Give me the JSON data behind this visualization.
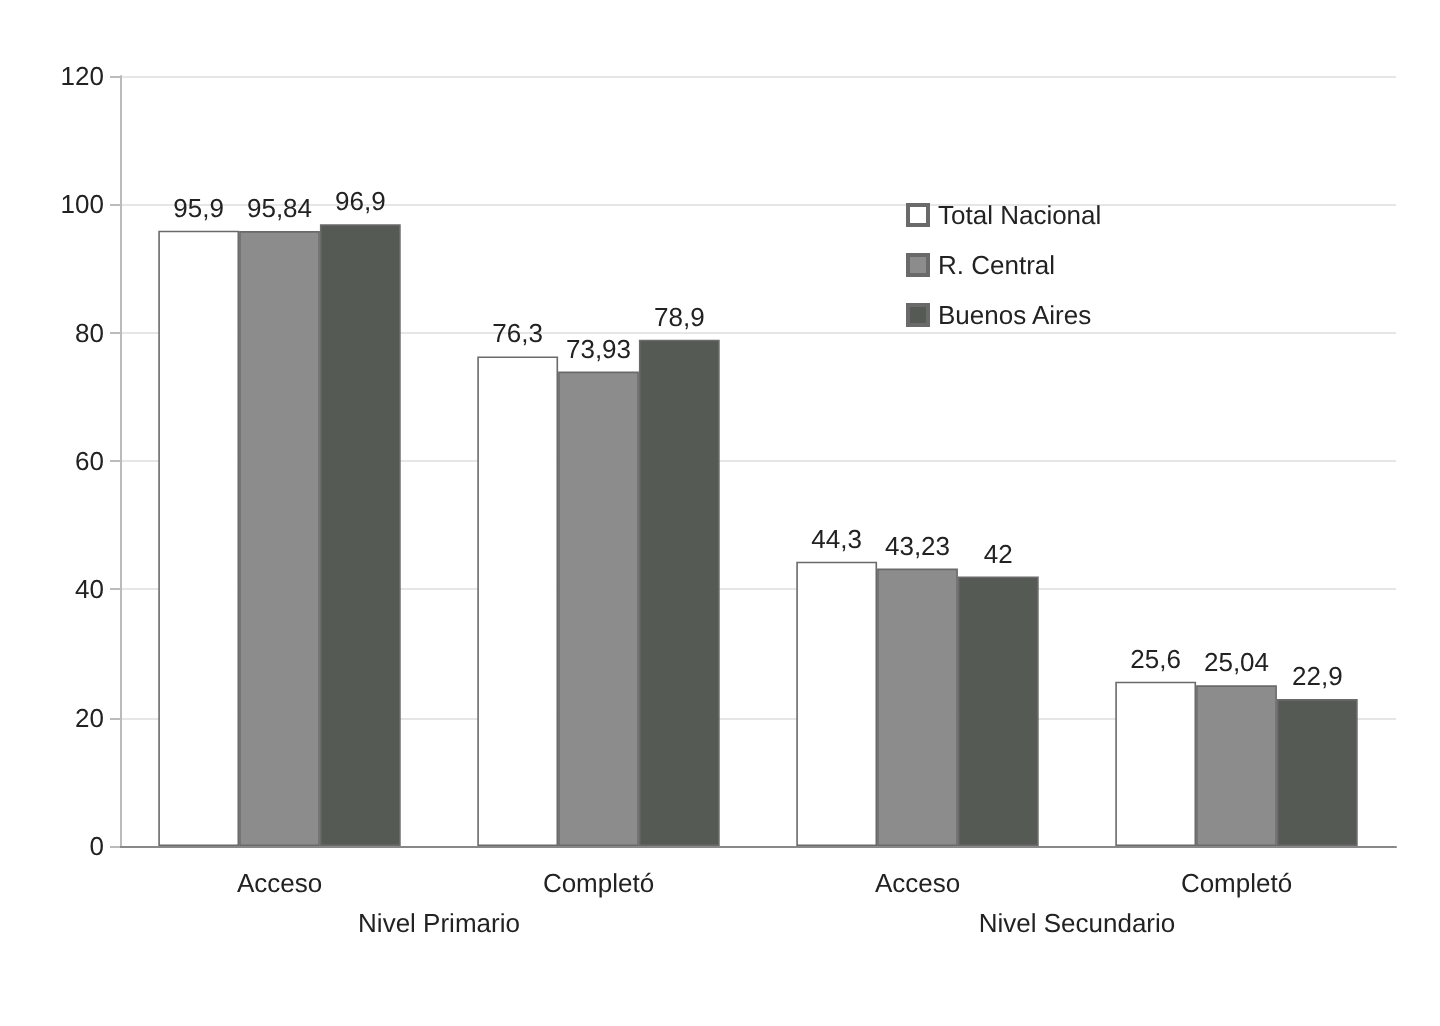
{
  "chart_data": {
    "type": "bar",
    "categories": [
      "Acceso",
      "Completó",
      "Acceso",
      "Completó"
    ],
    "series": [
      {
        "name": "Total Nacional",
        "color": "#ffffff",
        "values": [
          95.9,
          76.3,
          44.3,
          25.6
        ],
        "value_labels": [
          "95,9",
          "76,3",
          "44,3",
          "25,6"
        ]
      },
      {
        "name": "R. Central",
        "color": "#8c8c8c",
        "values": [
          95.84,
          73.93,
          43.23,
          25.04
        ],
        "value_labels": [
          "95,84",
          "73,93",
          "43,23",
          "25,04"
        ]
      },
      {
        "name": "Buenos Aires",
        "color": "#555a55",
        "values": [
          96.9,
          78.9,
          42,
          22.9
        ],
        "value_labels": [
          "96,9",
          "78,9",
          "42",
          "22,9"
        ]
      }
    ],
    "ylim": [
      0,
      120
    ],
    "yticks": [
      0,
      20,
      40,
      60,
      80,
      100,
      120
    ],
    "grid": "y",
    "legend": "top right",
    "annotations": [
      "Nivel Primario",
      "Nivel Secundario"
    ]
  }
}
